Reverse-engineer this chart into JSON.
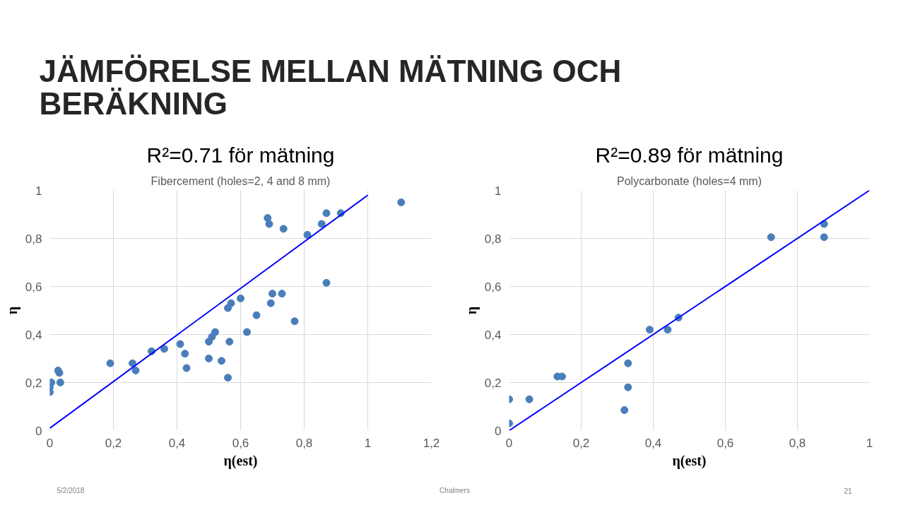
{
  "chart_data": [
    {
      "type": "scatter",
      "subtitle": "R²=0.71 för mätning",
      "title": "Fibercement (holes=2, 4 and 8 mm)",
      "xlabel": "η(est)",
      "ylabel": "η",
      "annotations": [
        "JÄMFÖRELSE MELLAN MÄTNING OCH BERÄKNING",
        "5/2/2018",
        "Chalmers",
        "21"
      ],
      "xlim": [
        0,
        1.2
      ],
      "ylim": [
        0,
        1
      ],
      "xticks": [
        0,
        {
          "value": 0.2,
          "label": "0,2"
        },
        {
          "value": 0.4,
          "label": "0,4"
        },
        {
          "value": 0.6,
          "label": "0,6"
        },
        {
          "value": 0.8,
          "label": "0,8"
        },
        1,
        {
          "value": 1.2,
          "label": "1,2"
        }
      ],
      "yticks": [
        0,
        {
          "value": 0.2,
          "label": "0,2"
        },
        {
          "value": 0.4,
          "label": "0,4"
        },
        {
          "value": 0.6,
          "label": "0,6"
        },
        {
          "value": 0.8,
          "label": "0,8"
        },
        1
      ],
      "grid": true,
      "series": [
        {
          "marker": "circle",
          "color": "#4a7ebb",
          "x": [
            0,
            0,
            0.005,
            0.026,
            0.03,
            0.033,
            0.19,
            0.26,
            0.27,
            0.32,
            0.36,
            0.41,
            0.425,
            0.43,
            0.5,
            0.5,
            0.51,
            0.52,
            0.54,
            0.56,
            0.565,
            0.56,
            0.57,
            0.6,
            0.62,
            0.65,
            0.685,
            0.69,
            0.695,
            0.7,
            0.73,
            0.735,
            0.77,
            0.81,
            0.855,
            0.87,
            0.87,
            0.915,
            1.105
          ],
          "values": [
            0.16,
            0.18,
            0.2,
            0.25,
            0.24,
            0.2,
            0.28,
            0.28,
            0.25,
            0.33,
            0.34,
            0.36,
            0.32,
            0.26,
            0.3,
            0.37,
            0.39,
            0.41,
            0.29,
            0.22,
            0.37,
            0.51,
            0.53,
            0.55,
            0.41,
            0.48,
            0.885,
            0.86,
            0.53,
            0.57,
            0.57,
            0.84,
            0.455,
            0.815,
            0.86,
            0.905,
            0.615,
            0.905,
            0.95
          ]
        },
        {
          "type": "line",
          "color": "#0000ff",
          "x": [
            0,
            1
          ],
          "values": [
            0.01,
            0.98
          ]
        }
      ]
    },
    {
      "type": "scatter",
      "subtitle": "R²=0.89 för mätning",
      "title": "Polycarbonate (holes=4 mm)",
      "xlabel": "η(est)",
      "ylabel": "η",
      "xlim": [
        0,
        1
      ],
      "ylim": [
        0,
        1
      ],
      "xticks": [
        0,
        {
          "value": 0.2,
          "label": "0,2"
        },
        {
          "value": 0.4,
          "label": "0,4"
        },
        {
          "value": 0.6,
          "label": "0,6"
        },
        {
          "value": 0.8,
          "label": "0,8"
        },
        1
      ],
      "yticks": [
        0,
        {
          "value": 0.2,
          "label": "0,2"
        },
        {
          "value": 0.4,
          "label": "0,4"
        },
        {
          "value": 0.6,
          "label": "0,6"
        },
        {
          "value": 0.8,
          "label": "0,8"
        },
        1
      ],
      "grid": true,
      "series": [
        {
          "marker": "circle",
          "color": "#4a7ebb",
          "x": [
            0,
            0,
            0.056,
            0.134,
            0.147,
            0.32,
            0.33,
            0.33,
            0.39,
            0.44,
            0.47,
            0.727,
            0.874,
            0.874
          ],
          "values": [
            0.13,
            0.03,
            0.13,
            0.225,
            0.225,
            0.085,
            0.28,
            0.18,
            0.42,
            0.42,
            0.47,
            0.805,
            0.86,
            0.805
          ]
        },
        {
          "type": "line",
          "color": "#0000ff",
          "x": [
            0,
            1
          ],
          "values": [
            0,
            1
          ]
        }
      ]
    }
  ]
}
